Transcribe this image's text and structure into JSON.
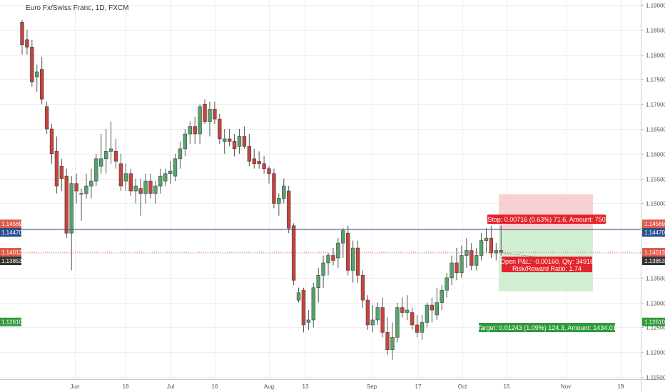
{
  "chart_title": "Euro Fx/Swiss Franc, 1D, FXCM",
  "colors": {
    "up": "#55a36b",
    "down": "#c8433b",
    "stop_zone": "#f6c7c7",
    "target_zone": "#c9eccb",
    "entry_line": "#2a4f8f",
    "current_line": "#e05a4b"
  },
  "price_axis": {
    "ticks": [
      "1.19000",
      "1.18500",
      "1.18000",
      "1.17500",
      "1.17000",
      "1.16500",
      "1.16000",
      "1.15500",
      "1.15000",
      "1.14500",
      "1.14000",
      "1.13500",
      "1.13000",
      "1.12500",
      "1.12000",
      "1.11500"
    ],
    "markers": [
      {
        "text": "1.14569",
        "color": "#e05a4b",
        "price": 1.14569
      },
      {
        "text": "1.14470",
        "color": "#2a4f8f",
        "price": 1.1447
      },
      {
        "text": "1.14013",
        "color": "#e05a4b",
        "price": 1.14013
      },
      {
        "text": "1.13853",
        "color": "#333333",
        "price": 1.13853
      },
      {
        "text": "1.12610",
        "color": "#2e9a3a",
        "price": 1.1261
      }
    ]
  },
  "time_axis": [
    "Jun",
    "18",
    "Jul",
    "16",
    "Aug",
    "13",
    "Sep",
    "17",
    "Oct",
    "15",
    "Nov",
    "19"
  ],
  "position": {
    "stop_label": "Stop: 0.00716 (0.63%) 71.6, Amount: 750",
    "pnl_line1": "Open P&L: -0.00160, Qty: 34916",
    "pnl_line2": "Risk/Reward Ratio: 1.74",
    "target_label": "Target: 0.01243 (1.09%) 124.3, Amount: 1434.01",
    "entry_price": 1.1447,
    "stop_price": 1.15186,
    "target_price": 1.13227,
    "current_price": 1.14013
  },
  "chart_data": {
    "type": "candlestick",
    "title": "Euro Fx/Swiss Franc, 1D, FXCM",
    "ylim": [
      1.1145,
      1.1905
    ],
    "y_ticks": [
      1.19,
      1.185,
      1.18,
      1.175,
      1.17,
      1.165,
      1.16,
      1.155,
      1.15,
      1.145,
      1.14,
      1.135,
      1.13,
      1.125,
      1.12,
      1.115
    ],
    "x_ticks": [
      "Jun",
      "18",
      "Jul",
      "16",
      "Aug",
      "13",
      "Sep",
      "17",
      "Oct",
      "15",
      "Nov",
      "19"
    ],
    "grid": true,
    "candles": [
      {
        "o": 1.1865,
        "h": 1.187,
        "l": 1.18,
        "c": 1.182
      },
      {
        "o": 1.183,
        "h": 1.185,
        "l": 1.18,
        "c": 1.1815
      },
      {
        "o": 1.1815,
        "h": 1.183,
        "l": 1.1735,
        "c": 1.1745
      },
      {
        "o": 1.1755,
        "h": 1.178,
        "l": 1.1725,
        "c": 1.1765
      },
      {
        "o": 1.177,
        "h": 1.1795,
        "l": 1.17,
        "c": 1.171
      },
      {
        "o": 1.1695,
        "h": 1.1705,
        "l": 1.164,
        "c": 1.165
      },
      {
        "o": 1.165,
        "h": 1.166,
        "l": 1.158,
        "c": 1.16
      },
      {
        "o": 1.1605,
        "h": 1.1635,
        "l": 1.152,
        "c": 1.1535
      },
      {
        "o": 1.1575,
        "h": 1.159,
        "l": 1.1525,
        "c": 1.155
      },
      {
        "o": 1.1555,
        "h": 1.157,
        "l": 1.143,
        "c": 1.144
      },
      {
        "o": 1.144,
        "h": 1.1555,
        "l": 1.1365,
        "c": 1.154
      },
      {
        "o": 1.154,
        "h": 1.156,
        "l": 1.15,
        "c": 1.1525
      },
      {
        "o": 1.152,
        "h": 1.153,
        "l": 1.1465,
        "c": 1.152
      },
      {
        "o": 1.152,
        "h": 1.156,
        "l": 1.151,
        "c": 1.1535
      },
      {
        "o": 1.1535,
        "h": 1.157,
        "l": 1.151,
        "c": 1.1545
      },
      {
        "o": 1.1545,
        "h": 1.16,
        "l": 1.1535,
        "c": 1.159
      },
      {
        "o": 1.1575,
        "h": 1.164,
        "l": 1.156,
        "c": 1.159
      },
      {
        "o": 1.159,
        "h": 1.165,
        "l": 1.156,
        "c": 1.1605
      },
      {
        "o": 1.1605,
        "h": 1.1665,
        "l": 1.158,
        "c": 1.161
      },
      {
        "o": 1.1605,
        "h": 1.163,
        "l": 1.157,
        "c": 1.1585
      },
      {
        "o": 1.158,
        "h": 1.16,
        "l": 1.1525,
        "c": 1.1535
      },
      {
        "o": 1.1545,
        "h": 1.158,
        "l": 1.1525,
        "c": 1.156
      },
      {
        "o": 1.156,
        "h": 1.157,
        "l": 1.1515,
        "c": 1.1525
      },
      {
        "o": 1.1525,
        "h": 1.155,
        "l": 1.15,
        "c": 1.1535
      },
      {
        "o": 1.153,
        "h": 1.155,
        "l": 1.1475,
        "c": 1.152
      },
      {
        "o": 1.152,
        "h": 1.156,
        "l": 1.15,
        "c": 1.1545
      },
      {
        "o": 1.1545,
        "h": 1.156,
        "l": 1.151,
        "c": 1.152
      },
      {
        "o": 1.152,
        "h": 1.1545,
        "l": 1.15,
        "c": 1.1535
      },
      {
        "o": 1.1535,
        "h": 1.157,
        "l": 1.152,
        "c": 1.1555
      },
      {
        "o": 1.1545,
        "h": 1.157,
        "l": 1.1535,
        "c": 1.156
      },
      {
        "o": 1.156,
        "h": 1.1585,
        "l": 1.154,
        "c": 1.1565
      },
      {
        "o": 1.1555,
        "h": 1.16,
        "l": 1.1545,
        "c": 1.159
      },
      {
        "o": 1.159,
        "h": 1.1625,
        "l": 1.157,
        "c": 1.161
      },
      {
        "o": 1.161,
        "h": 1.165,
        "l": 1.1595,
        "c": 1.164
      },
      {
        "o": 1.164,
        "h": 1.1665,
        "l": 1.162,
        "c": 1.1655
      },
      {
        "o": 1.1655,
        "h": 1.1675,
        "l": 1.162,
        "c": 1.164
      },
      {
        "o": 1.164,
        "h": 1.17,
        "l": 1.162,
        "c": 1.1695
      },
      {
        "o": 1.17,
        "h": 1.171,
        "l": 1.166,
        "c": 1.1665
      },
      {
        "o": 1.1665,
        "h": 1.1705,
        "l": 1.1635,
        "c": 1.169
      },
      {
        "o": 1.169,
        "h": 1.1705,
        "l": 1.166,
        "c": 1.167
      },
      {
        "o": 1.167,
        "h": 1.168,
        "l": 1.162,
        "c": 1.163
      },
      {
        "o": 1.1625,
        "h": 1.165,
        "l": 1.16,
        "c": 1.163
      },
      {
        "o": 1.163,
        "h": 1.165,
        "l": 1.1615,
        "c": 1.1625
      },
      {
        "o": 1.1625,
        "h": 1.164,
        "l": 1.1595,
        "c": 1.161
      },
      {
        "o": 1.1615,
        "h": 1.165,
        "l": 1.16,
        "c": 1.1635
      },
      {
        "o": 1.1635,
        "h": 1.1655,
        "l": 1.161,
        "c": 1.1615
      },
      {
        "o": 1.1615,
        "h": 1.164,
        "l": 1.1575,
        "c": 1.1585
      },
      {
        "o": 1.159,
        "h": 1.161,
        "l": 1.157,
        "c": 1.158
      },
      {
        "o": 1.1585,
        "h": 1.1605,
        "l": 1.157,
        "c": 1.158
      },
      {
        "o": 1.158,
        "h": 1.1595,
        "l": 1.156,
        "c": 1.157
      },
      {
        "o": 1.157,
        "h": 1.1575,
        "l": 1.154,
        "c": 1.156
      },
      {
        "o": 1.156,
        "h": 1.157,
        "l": 1.149,
        "c": 1.15
      },
      {
        "o": 1.15,
        "h": 1.152,
        "l": 1.1475,
        "c": 1.151
      },
      {
        "o": 1.151,
        "h": 1.155,
        "l": 1.15,
        "c": 1.1535
      },
      {
        "o": 1.1525,
        "h": 1.1535,
        "l": 1.144,
        "c": 1.145
      },
      {
        "o": 1.1455,
        "h": 1.146,
        "l": 1.1335,
        "c": 1.1345
      },
      {
        "o": 1.1305,
        "h": 1.133,
        "l": 1.13,
        "c": 1.132
      },
      {
        "o": 1.1325,
        "h": 1.133,
        "l": 1.124,
        "c": 1.1255
      },
      {
        "o": 1.126,
        "h": 1.1285,
        "l": 1.1245,
        "c": 1.1265
      },
      {
        "o": 1.1265,
        "h": 1.134,
        "l": 1.125,
        "c": 1.133
      },
      {
        "o": 1.133,
        "h": 1.137,
        "l": 1.13,
        "c": 1.1355
      },
      {
        "o": 1.1355,
        "h": 1.1395,
        "l": 1.133,
        "c": 1.138
      },
      {
        "o": 1.138,
        "h": 1.14,
        "l": 1.1355,
        "c": 1.1395
      },
      {
        "o": 1.1395,
        "h": 1.141,
        "l": 1.1375,
        "c": 1.1385
      },
      {
        "o": 1.139,
        "h": 1.143,
        "l": 1.137,
        "c": 1.142
      },
      {
        "o": 1.142,
        "h": 1.145,
        "l": 1.139,
        "c": 1.1445
      },
      {
        "o": 1.144,
        "h": 1.1455,
        "l": 1.1355,
        "c": 1.1365
      },
      {
        "o": 1.1365,
        "h": 1.1425,
        "l": 1.134,
        "c": 1.141
      },
      {
        "o": 1.141,
        "h": 1.1425,
        "l": 1.134,
        "c": 1.1355
      },
      {
        "o": 1.1355,
        "h": 1.1365,
        "l": 1.129,
        "c": 1.1305
      },
      {
        "o": 1.1305,
        "h": 1.1315,
        "l": 1.1245,
        "c": 1.1255
      },
      {
        "o": 1.1255,
        "h": 1.1295,
        "l": 1.124,
        "c": 1.1265
      },
      {
        "o": 1.1265,
        "h": 1.13,
        "l": 1.1255,
        "c": 1.129
      },
      {
        "o": 1.129,
        "h": 1.131,
        "l": 1.123,
        "c": 1.124
      },
      {
        "o": 1.124,
        "h": 1.127,
        "l": 1.1195,
        "c": 1.1205
      },
      {
        "o": 1.1205,
        "h": 1.126,
        "l": 1.1185,
        "c": 1.123
      },
      {
        "o": 1.123,
        "h": 1.13,
        "l": 1.122,
        "c": 1.129
      },
      {
        "o": 1.129,
        "h": 1.131,
        "l": 1.127,
        "c": 1.128
      },
      {
        "o": 1.128,
        "h": 1.1315,
        "l": 1.1265,
        "c": 1.1285
      },
      {
        "o": 1.128,
        "h": 1.129,
        "l": 1.1245,
        "c": 1.1255
      },
      {
        "o": 1.1255,
        "h": 1.1275,
        "l": 1.123,
        "c": 1.124
      },
      {
        "o": 1.124,
        "h": 1.1275,
        "l": 1.1225,
        "c": 1.126
      },
      {
        "o": 1.126,
        "h": 1.13,
        "l": 1.125,
        "c": 1.1295
      },
      {
        "o": 1.1295,
        "h": 1.131,
        "l": 1.126,
        "c": 1.1285
      },
      {
        "o": 1.1275,
        "h": 1.133,
        "l": 1.1265,
        "c": 1.13
      },
      {
        "o": 1.13,
        "h": 1.1335,
        "l": 1.1285,
        "c": 1.1325
      },
      {
        "o": 1.1325,
        "h": 1.136,
        "l": 1.131,
        "c": 1.135
      },
      {
        "o": 1.135,
        "h": 1.1395,
        "l": 1.1335,
        "c": 1.138
      },
      {
        "o": 1.138,
        "h": 1.141,
        "l": 1.1345,
        "c": 1.136
      },
      {
        "o": 1.136,
        "h": 1.1415,
        "l": 1.135,
        "c": 1.1395
      },
      {
        "o": 1.1395,
        "h": 1.143,
        "l": 1.137,
        "c": 1.1405
      },
      {
        "o": 1.1405,
        "h": 1.142,
        "l": 1.1365,
        "c": 1.1375
      },
      {
        "o": 1.1375,
        "h": 1.141,
        "l": 1.1365,
        "c": 1.1395
      },
      {
        "o": 1.1395,
        "h": 1.144,
        "l": 1.1385,
        "c": 1.1425
      },
      {
        "o": 1.1425,
        "h": 1.145,
        "l": 1.14,
        "c": 1.143
      },
      {
        "o": 1.143,
        "h": 1.1455,
        "l": 1.139,
        "c": 1.14
      },
      {
        "o": 1.14,
        "h": 1.142,
        "l": 1.1385,
        "c": 1.1405
      },
      {
        "o": 1.1405,
        "h": 1.1455,
        "l": 1.1395,
        "c": 1.1402
      }
    ]
  }
}
